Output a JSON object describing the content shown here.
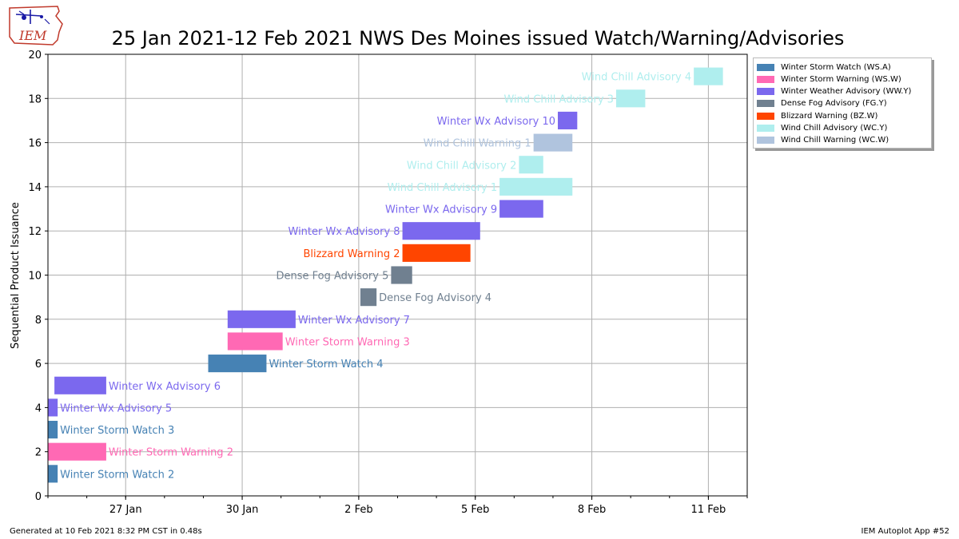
{
  "title": "25 Jan 2021-12 Feb 2021 NWS Des Moines issued Watch/Warning/Advisories",
  "logo_text": "IEM",
  "footer": {
    "left": "Generated at 10 Feb 2021 8:32 PM CST in 0.48s",
    "right": "IEM Autoplot App #52"
  },
  "legend": [
    {
      "label": "Winter Storm Watch (WS.A)",
      "color": "#4682b4"
    },
    {
      "label": "Winter Storm Warning (WS.W)",
      "color": "#ff69b4"
    },
    {
      "label": "Winter Weather Advisory (WW.Y)",
      "color": "#7b68ee"
    },
    {
      "label": "Dense Fog Advisory (FG.Y)",
      "color": "#708090"
    },
    {
      "label": "Blizzard Warning (BZ.W)",
      "color": "#ff4500"
    },
    {
      "label": "Wind Chill Advisory (WC.Y)",
      "color": "#afeeee"
    },
    {
      "label": "Wind Chill Warning (WC.W)",
      "color": "#b0c4de"
    }
  ],
  "chart_data": {
    "type": "bar",
    "orientation": "horizontal-timeline",
    "title": "25 Jan 2021-12 Feb 2021 NWS Des Moines issued Watch/Warning/Advisories",
    "xlabel": "",
    "ylabel": "Sequential Product Issuance",
    "xlim": [
      "2021-01-25 00:00",
      "2021-02-12 00:00"
    ],
    "ylim": [
      0,
      20
    ],
    "yticks": [
      0,
      2,
      4,
      6,
      8,
      10,
      12,
      14,
      16,
      18,
      20
    ],
    "xticks": [
      {
        "date": "2021-01-27",
        "label": "27 Jan"
      },
      {
        "date": "2021-01-30",
        "label": "30 Jan"
      },
      {
        "date": "2021-02-02",
        "label": "2 Feb"
      },
      {
        "date": "2021-02-05",
        "label": "5 Feb"
      },
      {
        "date": "2021-02-08",
        "label": "8 Feb"
      },
      {
        "date": "2021-02-11",
        "label": "11 Feb"
      }
    ],
    "grid": true,
    "legend_position": "outside-top-right",
    "bars": [
      {
        "seq": 1,
        "label": "Winter Storm Watch 2",
        "start": "2021-01-25 00:00",
        "end": "2021-01-25 06:00",
        "color": "#4682b4",
        "label_side": "right"
      },
      {
        "seq": 2,
        "label": "Winter Storm Warning 2",
        "start": "2021-01-25 00:00",
        "end": "2021-01-26 12:00",
        "color": "#ff69b4",
        "label_side": "right"
      },
      {
        "seq": 3,
        "label": "Winter Storm Watch 3",
        "start": "2021-01-25 00:00",
        "end": "2021-01-25 06:00",
        "color": "#4682b4",
        "label_side": "right"
      },
      {
        "seq": 4,
        "label": "Winter Wx Advisory 5",
        "start": "2021-01-25 00:00",
        "end": "2021-01-25 06:00",
        "color": "#7b68ee",
        "label_side": "right"
      },
      {
        "seq": 5,
        "label": "Winter Wx Advisory 6",
        "start": "2021-01-25 04:00",
        "end": "2021-01-26 12:00",
        "color": "#7b68ee",
        "label_side": "right"
      },
      {
        "seq": 6,
        "label": "Winter Storm Watch 4",
        "start": "2021-01-29 03:00",
        "end": "2021-01-30 15:00",
        "color": "#4682b4",
        "label_side": "right"
      },
      {
        "seq": 7,
        "label": "Winter Storm Warning 3",
        "start": "2021-01-29 15:00",
        "end": "2021-01-31 01:00",
        "color": "#ff69b4",
        "label_side": "right"
      },
      {
        "seq": 8,
        "label": "Winter Wx Advisory 7",
        "start": "2021-01-29 15:00",
        "end": "2021-01-31 09:00",
        "color": "#7b68ee",
        "label_side": "right"
      },
      {
        "seq": 9,
        "label": "Dense Fog Advisory 4",
        "start": "2021-02-02 01:00",
        "end": "2021-02-02 11:00",
        "color": "#708090",
        "label_side": "right"
      },
      {
        "seq": 10,
        "label": "Dense Fog Advisory 5",
        "start": "2021-02-02 20:00",
        "end": "2021-02-03 09:00",
        "color": "#708090",
        "label_side": "left"
      },
      {
        "seq": 11,
        "label": "Blizzard Warning 2",
        "start": "2021-02-03 03:00",
        "end": "2021-02-04 21:00",
        "color": "#ff4500",
        "label_side": "left"
      },
      {
        "seq": 12,
        "label": "Winter Wx Advisory 8",
        "start": "2021-02-03 03:00",
        "end": "2021-02-05 03:00",
        "color": "#7b68ee",
        "label_side": "left"
      },
      {
        "seq": 13,
        "label": "Winter Wx Advisory 9",
        "start": "2021-02-05 15:00",
        "end": "2021-02-06 18:00",
        "color": "#7b68ee",
        "label_side": "left"
      },
      {
        "seq": 14,
        "label": "Wind Chill Advisory 1",
        "start": "2021-02-05 15:00",
        "end": "2021-02-07 12:00",
        "color": "#afeeee",
        "label_side": "left"
      },
      {
        "seq": 15,
        "label": "Wind Chill Advisory 2",
        "start": "2021-02-06 03:00",
        "end": "2021-02-06 18:00",
        "color": "#afeeee",
        "label_side": "left"
      },
      {
        "seq": 16,
        "label": "Wind Chill Warning 1",
        "start": "2021-02-06 12:00",
        "end": "2021-02-07 12:00",
        "color": "#b0c4de",
        "label_side": "left"
      },
      {
        "seq": 17,
        "label": "Winter Wx Advisory 10",
        "start": "2021-02-07 03:00",
        "end": "2021-02-07 15:00",
        "color": "#7b68ee",
        "label_side": "left"
      },
      {
        "seq": 18,
        "label": "Wind Chill Advisory 3",
        "start": "2021-02-08 15:00",
        "end": "2021-02-09 09:00",
        "color": "#afeeee",
        "label_side": "left"
      },
      {
        "seq": 19,
        "label": "Wind Chill Advisory 4",
        "start": "2021-02-10 15:00",
        "end": "2021-02-11 09:00",
        "color": "#afeeee",
        "label_side": "left"
      }
    ]
  }
}
